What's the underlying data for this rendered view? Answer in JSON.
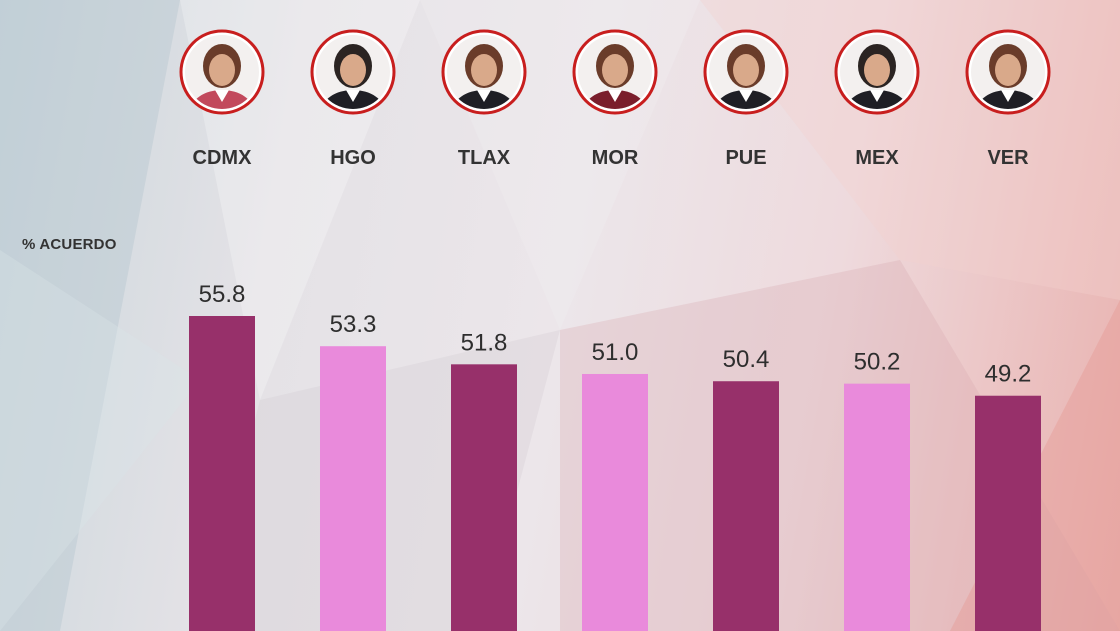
{
  "chart_data": {
    "type": "bar",
    "ylabel": "% ACUERDO",
    "categories": [
      "CDMX",
      "HGO",
      "TLAX",
      "MOR",
      "PUE",
      "MEX",
      "VER"
    ],
    "values": [
      55.8,
      53.3,
      51.8,
      51.0,
      50.4,
      50.2,
      49.2
    ],
    "value_labels": [
      "55.8",
      "53.3",
      "51.8",
      "51.0",
      "50.4",
      "50.2",
      "49.2"
    ],
    "grid": false,
    "legend": "none",
    "bar_colors": [
      "#97306a",
      "#e98adb",
      "#97306a",
      "#e98adb",
      "#97306a",
      "#e98adb",
      "#97306a"
    ],
    "avatar_ring_color": "#c81e1e",
    "icons": [
      "person-photo-icon"
    ]
  }
}
